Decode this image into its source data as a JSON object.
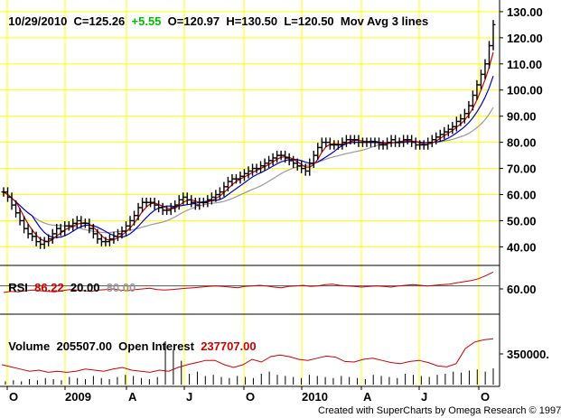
{
  "header": {
    "date": "10/29/2010",
    "close": "C=125.26",
    "change": "+5.55",
    "open": "O=120.97",
    "high": "H=130.50",
    "low": "L=120.50",
    "study": "Mov Avg 3 lines"
  },
  "rsi_panel": {
    "label": "RSI",
    "value": "86.22",
    "level_low": "20.00",
    "level_high": "80.00"
  },
  "volume_panel": {
    "label": "Volume",
    "value": "205507.00",
    "oi_label": "Open Interest",
    "oi_value": "237707.00"
  },
  "credit": "Created with SuperCharts by Omega Research © 1997",
  "colors": {
    "background": "#ffffff",
    "grid": "#ffff00",
    "bars": "#000000",
    "ma_fast": "#cc0000",
    "ma_mid": "#0000cc",
    "ma_slow": "#999999",
    "positive_change": "#00c000",
    "rsi_value": "#cc0000",
    "rsi_high_level": "#999999",
    "oi_value": "#cc0000"
  },
  "chart_data": [
    {
      "type": "ohlc",
      "panel": "price",
      "x_ticks": [
        "O",
        "2009",
        "A",
        "J",
        "O",
        "2010",
        "A",
        "J",
        "O"
      ],
      "y_ticks": [
        "130.00",
        "120.00",
        "110.00",
        "100.00",
        "90.00",
        "80.00",
        "70.00",
        "60.00",
        "50.00",
        "40.00"
      ],
      "ylim": [
        36,
        131
      ],
      "series": [
        {
          "name": "Price",
          "values": [
            61,
            59,
            56,
            53,
            50,
            47,
            45,
            44,
            42,
            41,
            42,
            43,
            45,
            47,
            46,
            48,
            48,
            49,
            50,
            49,
            49,
            47,
            45,
            43,
            42,
            42,
            43,
            44,
            45,
            46,
            48,
            50,
            52,
            55,
            57,
            57,
            57,
            56,
            55,
            54,
            54,
            55,
            56,
            58,
            59,
            58,
            57,
            56,
            57,
            57,
            58,
            59,
            60,
            61,
            63,
            65,
            66,
            66,
            67,
            68,
            69,
            70,
            70,
            71,
            72,
            73,
            74,
            75,
            75,
            74,
            73,
            72,
            71,
            70,
            69,
            72,
            75,
            78,
            80,
            80,
            79,
            79,
            79,
            80,
            81,
            81,
            81,
            80,
            80,
            80,
            80,
            80,
            79,
            79,
            80,
            81,
            80,
            80,
            81,
            81,
            80,
            79,
            79,
            79,
            80,
            81,
            82,
            83,
            84,
            85,
            86,
            88,
            89,
            91,
            94,
            98,
            102,
            106,
            110,
            117,
            125
          ]
        }
      ]
    },
    {
      "type": "line",
      "panel": "rsi",
      "series": [
        {
          "name": "RSI",
          "values": [
            52,
            54,
            53,
            55,
            56,
            55,
            54,
            53,
            55,
            57,
            56,
            55,
            54,
            56,
            57,
            58,
            56,
            55,
            57,
            58,
            59,
            57,
            56,
            57,
            58,
            59,
            60,
            61,
            62,
            63,
            62,
            61,
            60,
            62,
            63,
            64,
            63,
            61,
            60,
            62,
            63,
            64,
            62,
            63,
            65,
            66,
            64,
            63,
            62,
            61,
            62,
            63,
            62,
            61,
            63,
            64,
            65,
            64,
            63,
            64,
            65,
            66,
            68,
            70,
            72,
            75,
            80,
            86
          ]
        }
      ]
    },
    {
      "type": "bar+line",
      "panel": "volume",
      "y_ticks": [
        "350000."
      ],
      "series": [
        {
          "name": "Volume",
          "values": [
            3,
            4,
            3,
            5,
            4,
            6,
            5,
            4,
            7,
            6,
            5,
            8,
            6,
            5,
            7,
            9,
            8,
            6,
            5,
            7,
            40,
            32,
            22,
            10,
            12,
            8,
            9,
            7,
            6,
            8,
            7,
            6,
            10,
            12,
            9,
            8,
            7,
            6,
            9,
            8,
            7,
            6,
            8,
            7,
            6,
            5,
            9,
            8,
            7,
            6,
            10,
            9,
            8,
            7,
            9,
            10,
            12,
            11,
            13,
            14,
            12,
            15
          ]
        },
        {
          "name": "Open Interest",
          "values": [
            330,
            326,
            322,
            318,
            320,
            316,
            318,
            316,
            318,
            322,
            320,
            318,
            322,
            325,
            320,
            318,
            316,
            320,
            318,
            325,
            330,
            334,
            338,
            338,
            330,
            325,
            330,
            340,
            335,
            345,
            348,
            345,
            340,
            338,
            342,
            346,
            344,
            336,
            335,
            340,
            342,
            338,
            334,
            332,
            336,
            338,
            334,
            328,
            326,
            332,
            360,
            372,
            376,
            378
          ]
        }
      ]
    }
  ]
}
